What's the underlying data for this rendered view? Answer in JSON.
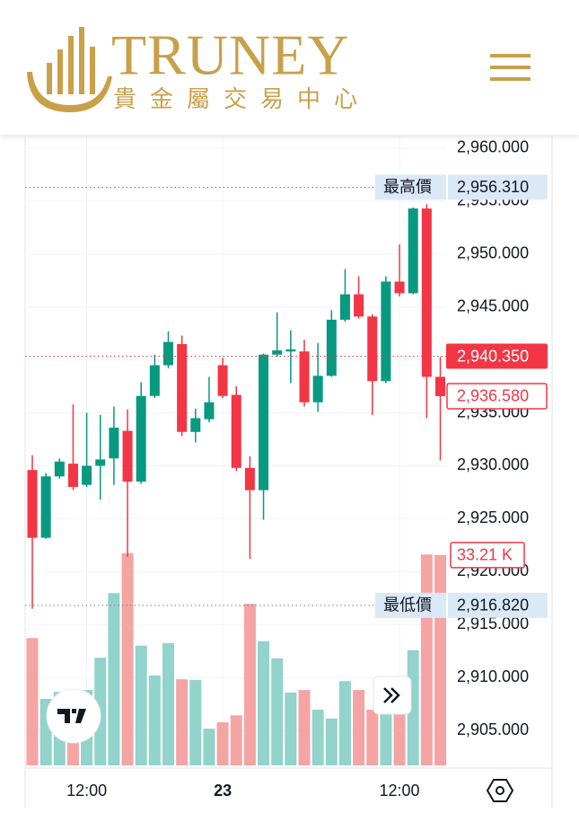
{
  "header": {
    "brand": "TRUNEY",
    "subtitle": "貴金屬交易中心"
  },
  "chart_data": {
    "type": "candlestick",
    "categories": [
      null,
      null,
      null,
      null,
      "12:00",
      null,
      null,
      null,
      null,
      null,
      null,
      null,
      null,
      null,
      "23",
      null,
      null,
      null,
      null,
      null,
      null,
      null,
      null,
      null,
      null,
      null,
      null,
      "12:00",
      null,
      null,
      null
    ],
    "open": [
      2929.6,
      2923.2,
      2929.0,
      2930.2,
      2928.2,
      2930.0,
      2930.7,
      2933.3,
      2928.5,
      2936.6,
      2939.5,
      2941.5,
      2933.2,
      2934.4,
      2939.5,
      2936.7,
      2929.8,
      2927.7,
      2940.5,
      2940.8,
      2940.8,
      2936.0,
      2938.5,
      2943.8,
      2946.2,
      2944.1,
      2938.0,
      2947.4,
      2946.3,
      2954.3,
      2938.4
    ],
    "high": [
      2931.0,
      2929.3,
      2930.7,
      2935.8,
      2935.0,
      2934.8,
      2935.6,
      2935.3,
      2937.9,
      2940.5,
      2942.7,
      2942.3,
      2935.4,
      2938.4,
      2940.2,
      2937.5,
      2930.9,
      2940.6,
      2944.5,
      2942.8,
      2941.9,
      2941.6,
      2944.7,
      2948.6,
      2947.9,
      2944.3,
      2947.9,
      2950.9,
      2954.4,
      2954.7,
      2940.3
    ],
    "low": [
      2916.5,
      2923.1,
      2928.8,
      2927.7,
      2928.0,
      2926.8,
      2928.2,
      2921.4,
      2928.3,
      2936.4,
      2939.2,
      2932.8,
      2932.2,
      2934.1,
      2936.4,
      2929.5,
      2921.2,
      2924.9,
      2940.3,
      2937.8,
      2935.6,
      2935.1,
      2938.4,
      2943.6,
      2943.9,
      2934.8,
      2937.8,
      2946.0,
      2946.2,
      2934.5,
      2930.5
    ],
    "close": [
      2923.2,
      2929.0,
      2930.4,
      2928.0,
      2930.0,
      2930.6,
      2933.6,
      2928.5,
      2936.6,
      2939.5,
      2941.7,
      2933.2,
      2934.5,
      2936.0,
      2936.6,
      2929.8,
      2927.7,
      2940.5,
      2940.9,
      2941.0,
      2936.0,
      2938.5,
      2943.8,
      2946.2,
      2944.1,
      2938.0,
      2947.4,
      2946.3,
      2954.3,
      2938.4,
      2936.58
    ],
    "volume": [
      20.1,
      10.5,
      11.6,
      10.0,
      11.9,
      17.0,
      27.2,
      33.5,
      18.9,
      14.2,
      19.3,
      13.6,
      13.5,
      5.8,
      6.8,
      7.9,
      25.5,
      19.6,
      16.9,
      11.5,
      11.9,
      8.8,
      7.4,
      13.3,
      11.9,
      8.8,
      8.8,
      11.3,
      18.2,
      33.3,
      33.21
    ],
    "volume_last": {
      "value": 33.21,
      "label": "33.21 K"
    },
    "up_color": "#089981",
    "down_color": "#f23645",
    "up_volume_color": "#92d3cc",
    "down_volume_color": "#f5a4a4",
    "ylim": [
      2901.7,
      2961.1
    ],
    "vlim": [
      0,
      40
    ],
    "yticks": [
      {
        "value": 2905,
        "label": "2,905.000"
      },
      {
        "value": 2910,
        "label": "2,910.000"
      },
      {
        "value": 2915,
        "label": "2,915.000"
      },
      {
        "value": 2920,
        "label": "2,920.000"
      },
      {
        "value": 2925,
        "label": "2,925.000"
      },
      {
        "value": 2930,
        "label": "2,930.000"
      },
      {
        "value": 2935,
        "label": "2,935.000"
      },
      {
        "value": 2940,
        "label": "2,940.000"
      },
      {
        "value": 2945,
        "label": "2,945.000"
      },
      {
        "value": 2950,
        "label": "2,950.000"
      },
      {
        "value": 2955,
        "label": "2,955.000"
      },
      {
        "value": 2960,
        "label": "2,960.000"
      }
    ],
    "high_marker": {
      "label": "最高價",
      "value": 2956.31,
      "value_label": "2,956.310"
    },
    "low_marker": {
      "label": "最低價",
      "value": 2916.82,
      "value_label": "2,916.820"
    },
    "last_price": {
      "value": 2940.35,
      "label": "2,940.350"
    },
    "last_close": {
      "value": 2936.58,
      "label": "2,936.580"
    },
    "grid": true
  }
}
